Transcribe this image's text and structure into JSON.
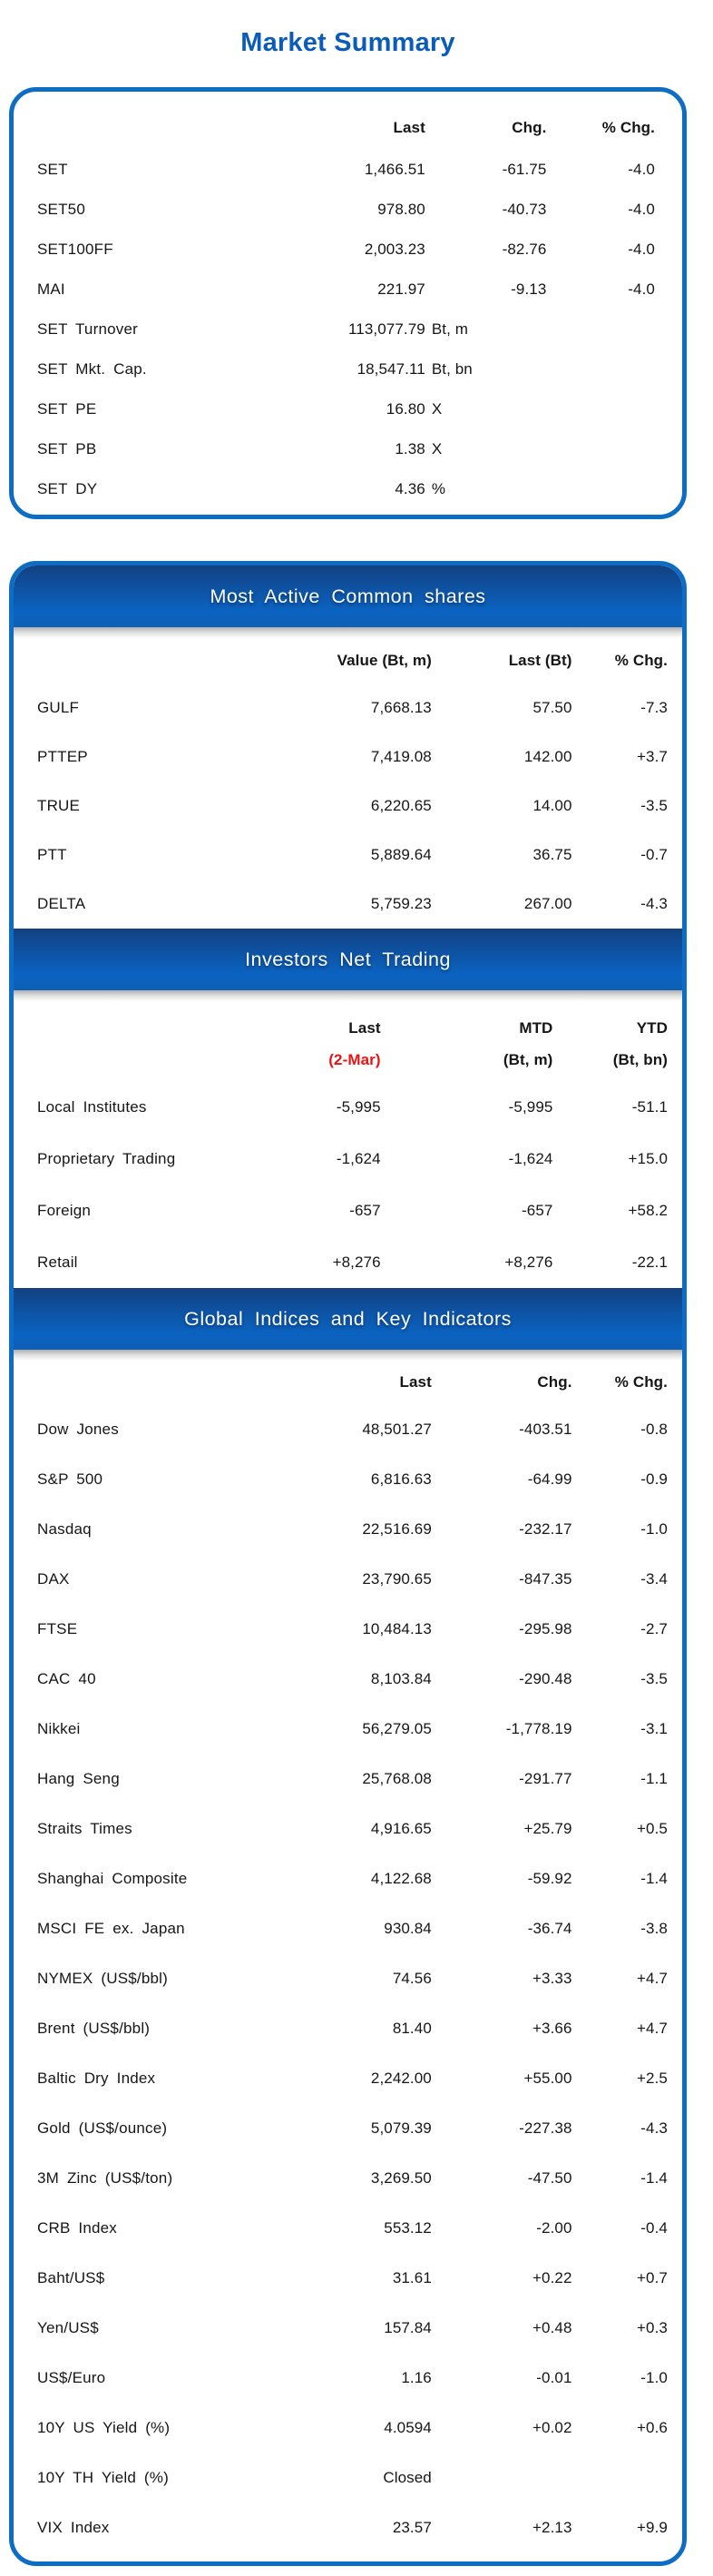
{
  "title": "Market Summary",
  "colors": {
    "title_blue": "#0b5cb8",
    "border_blue": "#0d6cc4",
    "band_gradient_top": "#14407f",
    "band_gradient_bottom": "#0b63c0",
    "band_text": "#ffffff",
    "date_red": "#e81414",
    "body_text": "#161616"
  },
  "market_summary": {
    "columns": [
      "Last",
      "Chg.",
      "% Chg."
    ],
    "rows": [
      {
        "label": "SET",
        "cells": [
          "1,466.51",
          "-61.75",
          "-4.0"
        ]
      },
      {
        "label": "SET50",
        "cells": [
          "978.80",
          "-40.73",
          "-4.0"
        ]
      },
      {
        "label": "SET100FF",
        "cells": [
          "2,003.23",
          "-82.76",
          "-4.0"
        ]
      },
      {
        "label": "MAI",
        "cells": [
          "221.97",
          "-9.13",
          "-4.0"
        ]
      },
      {
        "label": "SET Turnover",
        "value": "113,077.79",
        "unit": "Bt, m"
      },
      {
        "label": "SET Mkt. Cap.",
        "value": "18,547.11",
        "unit": "Bt, bn"
      },
      {
        "label": "SET PE",
        "value": "16.80",
        "unit": "X"
      },
      {
        "label": "SET PB",
        "value": "1.38",
        "unit": "X"
      },
      {
        "label": "SET DY",
        "value": "4.36",
        "unit": "%"
      }
    ]
  },
  "most_active": {
    "title": "Most Active Common shares",
    "columns": [
      "Value (Bt, m)",
      "Last (Bt)",
      "% Chg."
    ],
    "rows": [
      {
        "label": "GULF",
        "cells": [
          "7,668.13",
          "57.50",
          "-7.3"
        ]
      },
      {
        "label": "PTTEP",
        "cells": [
          "7,419.08",
          "142.00",
          "+3.7"
        ]
      },
      {
        "label": "TRUE",
        "cells": [
          "6,220.65",
          "14.00",
          "-3.5"
        ]
      },
      {
        "label": "PTT",
        "cells": [
          "5,889.64",
          "36.75",
          "-0.7"
        ]
      },
      {
        "label": "DELTA",
        "cells": [
          "5,759.23",
          "267.00",
          "-4.3"
        ]
      }
    ]
  },
  "investors": {
    "title": "Investors Net Trading",
    "columns": [
      {
        "top": "Last",
        "sub": "(2-Mar)"
      },
      {
        "top": "MTD",
        "sub": "(Bt, m)"
      },
      {
        "top": "YTD",
        "sub": "(Bt, bn)"
      }
    ],
    "rows": [
      {
        "label": "Local Institutes",
        "cells": [
          "-5,995",
          "-5,995",
          "-51.1"
        ]
      },
      {
        "label": "Proprietary Trading",
        "cells": [
          "-1,624",
          "-1,624",
          "+15.0"
        ]
      },
      {
        "label": "Foreign",
        "cells": [
          "-657",
          "-657",
          "+58.2"
        ]
      },
      {
        "label": "Retail",
        "cells": [
          "+8,276",
          "+8,276",
          "-22.1"
        ]
      }
    ]
  },
  "global_indices": {
    "title": "Global Indices and Key Indicators",
    "columns": [
      "Last",
      "Chg.",
      "% Chg."
    ],
    "rows": [
      {
        "label": "Dow Jones",
        "cells": [
          "48,501.27",
          "-403.51",
          "-0.8"
        ]
      },
      {
        "label": "S&P 500",
        "cells": [
          "6,816.63",
          "-64.99",
          "-0.9"
        ]
      },
      {
        "label": "Nasdaq",
        "cells": [
          "22,516.69",
          "-232.17",
          "-1.0"
        ]
      },
      {
        "label": "DAX",
        "cells": [
          "23,790.65",
          "-847.35",
          "-3.4"
        ]
      },
      {
        "label": "FTSE",
        "cells": [
          "10,484.13",
          "-295.98",
          "-2.7"
        ]
      },
      {
        "label": "CAC 40",
        "cells": [
          "8,103.84",
          "-290.48",
          "-3.5"
        ]
      },
      {
        "label": "Nikkei",
        "cells": [
          "56,279.05",
          "-1,778.19",
          "-3.1"
        ]
      },
      {
        "label": "Hang Seng",
        "cells": [
          "25,768.08",
          "-291.77",
          "-1.1"
        ]
      },
      {
        "label": "Straits Times",
        "cells": [
          "4,916.65",
          "+25.79",
          "+0.5"
        ]
      },
      {
        "label": "Shanghai Composite",
        "cells": [
          "4,122.68",
          "-59.92",
          "-1.4"
        ]
      },
      {
        "label": "MSCI FE ex. Japan",
        "cells": [
          "930.84",
          "-36.74",
          "-3.8"
        ]
      },
      {
        "label": "NYMEX (US$/bbl)",
        "cells": [
          "74.56",
          "+3.33",
          "+4.7"
        ]
      },
      {
        "label": "Brent (US$/bbl)",
        "cells": [
          "81.40",
          "+3.66",
          "+4.7"
        ]
      },
      {
        "label": "Baltic Dry Index",
        "cells": [
          "2,242.00",
          "+55.00",
          "+2.5"
        ]
      },
      {
        "label": "Gold (US$/ounce)",
        "cells": [
          "5,079.39",
          "-227.38",
          "-4.3"
        ]
      },
      {
        "label": "3M Zinc (US$/ton)",
        "cells": [
          "3,269.50",
          "-47.50",
          "-1.4"
        ]
      },
      {
        "label": "CRB Index",
        "cells": [
          "553.12",
          "-2.00",
          "-0.4"
        ]
      },
      {
        "label": "Baht/US$",
        "cells": [
          "31.61",
          "+0.22",
          "+0.7"
        ]
      },
      {
        "label": "Yen/US$",
        "cells": [
          "157.84",
          "+0.48",
          "+0.3"
        ]
      },
      {
        "label": "US$/Euro",
        "cells": [
          "1.16",
          "-0.01",
          "-1.0"
        ]
      },
      {
        "label": "10Y US Yield (%)",
        "cells": [
          "4.0594",
          "+0.02",
          "+0.6"
        ]
      },
      {
        "label": "10Y TH Yield (%)",
        "cells": [
          "Closed",
          "",
          ""
        ]
      },
      {
        "label": "VIX Index",
        "cells": [
          "23.57",
          "+2.13",
          "+9.9"
        ]
      }
    ]
  }
}
